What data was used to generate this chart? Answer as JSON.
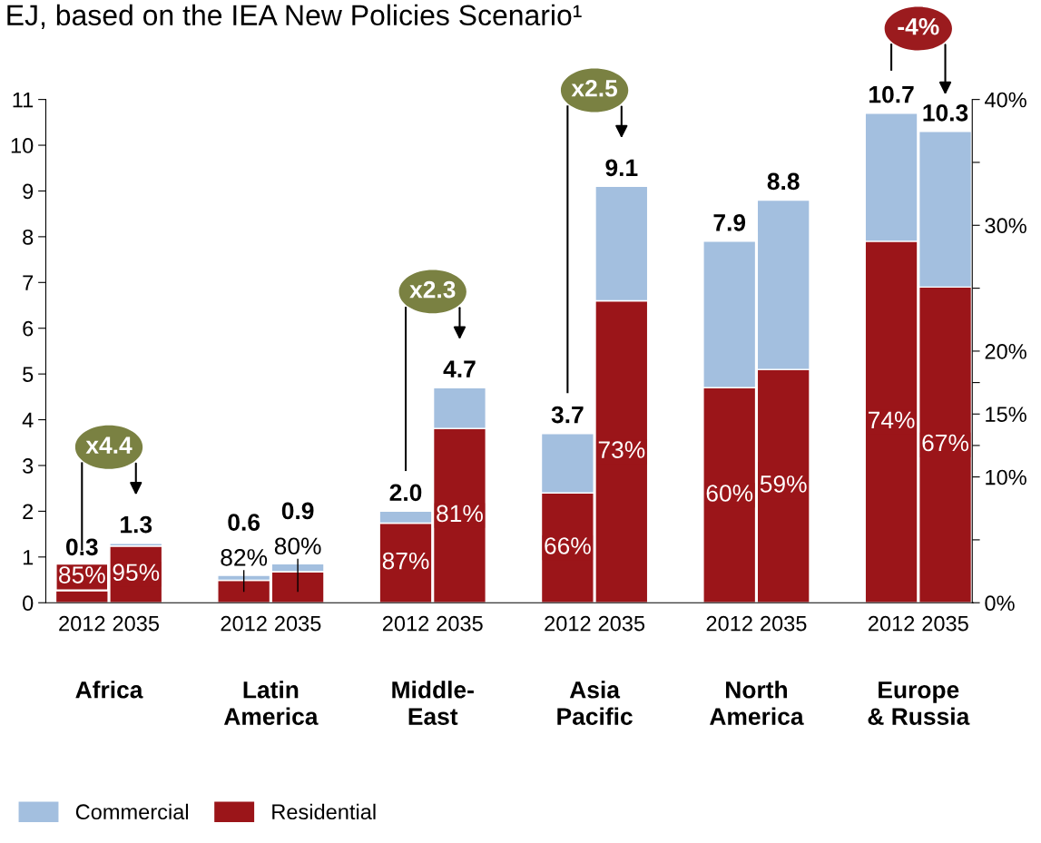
{
  "chart_data": {
    "type": "bar",
    "title": "EJ, based on the IEA New Policies Scenario¹",
    "categories": [
      "2012",
      "2035",
      null,
      "2012",
      "2035",
      null,
      "2012",
      "2035",
      null,
      "2012",
      "2035",
      null,
      "2012",
      "2035",
      null,
      "2012",
      "2035"
    ],
    "stacked": true,
    "series": [
      {
        "name": "Residential",
        "color": "#9b1519",
        "values": [
          0.26,
          1.24,
          null,
          0.49,
          0.68,
          null,
          1.74,
          3.81,
          null,
          2.4,
          6.6,
          null,
          4.7,
          5.1,
          null,
          7.9,
          6.9
        ]
      },
      {
        "name": "Commercial",
        "color": "#a3bfdf",
        "values": [
          null,
          0.06,
          null,
          0.11,
          0.17,
          null,
          0.26,
          0.89,
          null,
          1.3,
          2.5,
          null,
          3.2,
          3.7,
          null,
          2.8,
          3.4
        ]
      }
    ],
    "totals": [
      "0.3",
      "1.3",
      null,
      "0.6",
      "0.9",
      null,
      "2.0",
      "4.7",
      null,
      "3.7",
      "9.1",
      null,
      "7.9",
      "8.8",
      null,
      "10.7",
      "10.3"
    ],
    "ylim": [
      0,
      11
    ],
    "yticks": [
      0,
      1,
      2,
      3,
      4,
      5,
      6,
      7,
      8,
      9,
      10,
      11
    ],
    "y2lim": [
      0,
      40
    ],
    "y2ticks": [
      {
        "value": 0,
        "label": "0%"
      },
      {
        "value": 5,
        "label": null
      },
      {
        "value": 10,
        "label": "10%"
      },
      {
        "value": 12.5,
        "label": null
      },
      {
        "value": 15,
        "label": "15%"
      },
      {
        "value": 17.5,
        "label": null
      },
      {
        "value": 20,
        "label": "20%"
      },
      {
        "value": 25,
        "label": null
      },
      {
        "value": 30,
        "label": "30%"
      },
      {
        "value": 35,
        "label": null
      },
      {
        "value": 40,
        "label": "40%"
      }
    ],
    "annotations": [
      "Africa",
      "Latin\nAmerica",
      "Middle-\nEast",
      "Asia\nPacific",
      "North\nAmerica",
      "Europe\n& Russia",
      "x4.4",
      "x2.3",
      "x2.5",
      "-4%",
      "85%",
      "95%",
      "82%",
      "80%",
      "87%",
      "81%",
      "66%",
      "73%",
      "60%",
      "59%",
      "74%",
      "67%"
    ],
    "grid": false,
    "legend": "bottom"
  }
}
